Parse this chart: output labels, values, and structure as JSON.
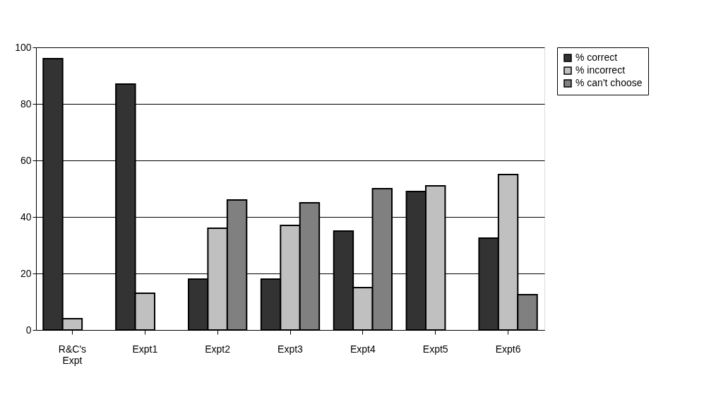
{
  "chart_data": {
    "type": "bar",
    "categories": [
      "R&C's Expt",
      "Expt1",
      "Expt2",
      "Expt3",
      "Expt4",
      "Expt5",
      "Expt6"
    ],
    "series": [
      {
        "name": "% correct",
        "color": "#333333",
        "values": [
          96,
          87,
          18,
          18,
          35,
          49,
          32.5
        ]
      },
      {
        "name": "% incorrect",
        "color": "#c0c0c0",
        "values": [
          4,
          13,
          36,
          37,
          15,
          51,
          55
        ]
      },
      {
        "name": "% can't choose",
        "color": "#808080",
        "values": [
          null,
          null,
          46,
          45,
          50,
          null,
          12.5
        ]
      }
    ],
    "ylim": [
      0,
      100
    ],
    "yticks": [
      0,
      20,
      40,
      60,
      80,
      100
    ],
    "grid": "y",
    "legend": "right"
  }
}
